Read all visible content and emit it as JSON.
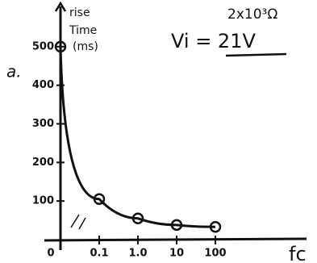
{
  "chart_data": {
    "type": "line",
    "y_label": [
      "rise",
      "Time",
      "(ms)"
    ],
    "annotation": "a.",
    "resistance": "2x10³Ω",
    "voltage": "Vi = 21V",
    "x_label": "fc",
    "categories": [
      "0",
      "0.1",
      "1.0",
      "10",
      "100"
    ],
    "values": [
      500,
      105,
      55,
      38,
      33
    ],
    "color": "#111111",
    "ylim": [
      0,
      600
    ],
    "yticks": [
      100,
      200,
      300,
      400,
      500
    ]
  }
}
